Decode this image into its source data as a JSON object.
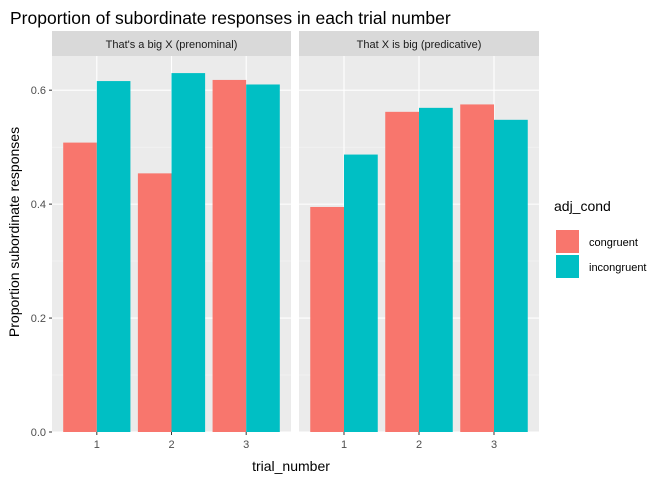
{
  "chart_data": {
    "type": "bar",
    "title": "Proportion of subordinate responses in each trial number",
    "xlabel": "trial_number",
    "ylabel": "Proportion subordinate responses",
    "ylim": [
      0,
      0.66
    ],
    "y_ticks": [
      "0.0",
      "0.2",
      "0.4",
      "0.6"
    ],
    "y_tick_values": [
      0,
      0.2,
      0.4,
      0.6
    ],
    "grid": true,
    "legend": {
      "title": "adj_cond",
      "placement": "right",
      "entries": [
        "congruent",
        "incongruent"
      ]
    },
    "colors": {
      "congruent": "#f8766d",
      "incongruent": "#00bfc4"
    },
    "facets": [
      {
        "label": "That's a big X (prenominal)",
        "categories": [
          "1",
          "2",
          "3"
        ],
        "series": [
          {
            "name": "congruent",
            "values": [
              0.508,
              0.454,
              0.618
            ]
          },
          {
            "name": "incongruent",
            "values": [
              0.616,
              0.63,
              0.61
            ]
          }
        ]
      },
      {
        "label": "That X is big (predicative)",
        "categories": [
          "1",
          "2",
          "3"
        ],
        "series": [
          {
            "name": "congruent",
            "values": [
              0.395,
              0.562,
              0.575
            ]
          },
          {
            "name": "incongruent",
            "values": [
              0.487,
              0.569,
              0.548
            ]
          }
        ]
      }
    ]
  }
}
